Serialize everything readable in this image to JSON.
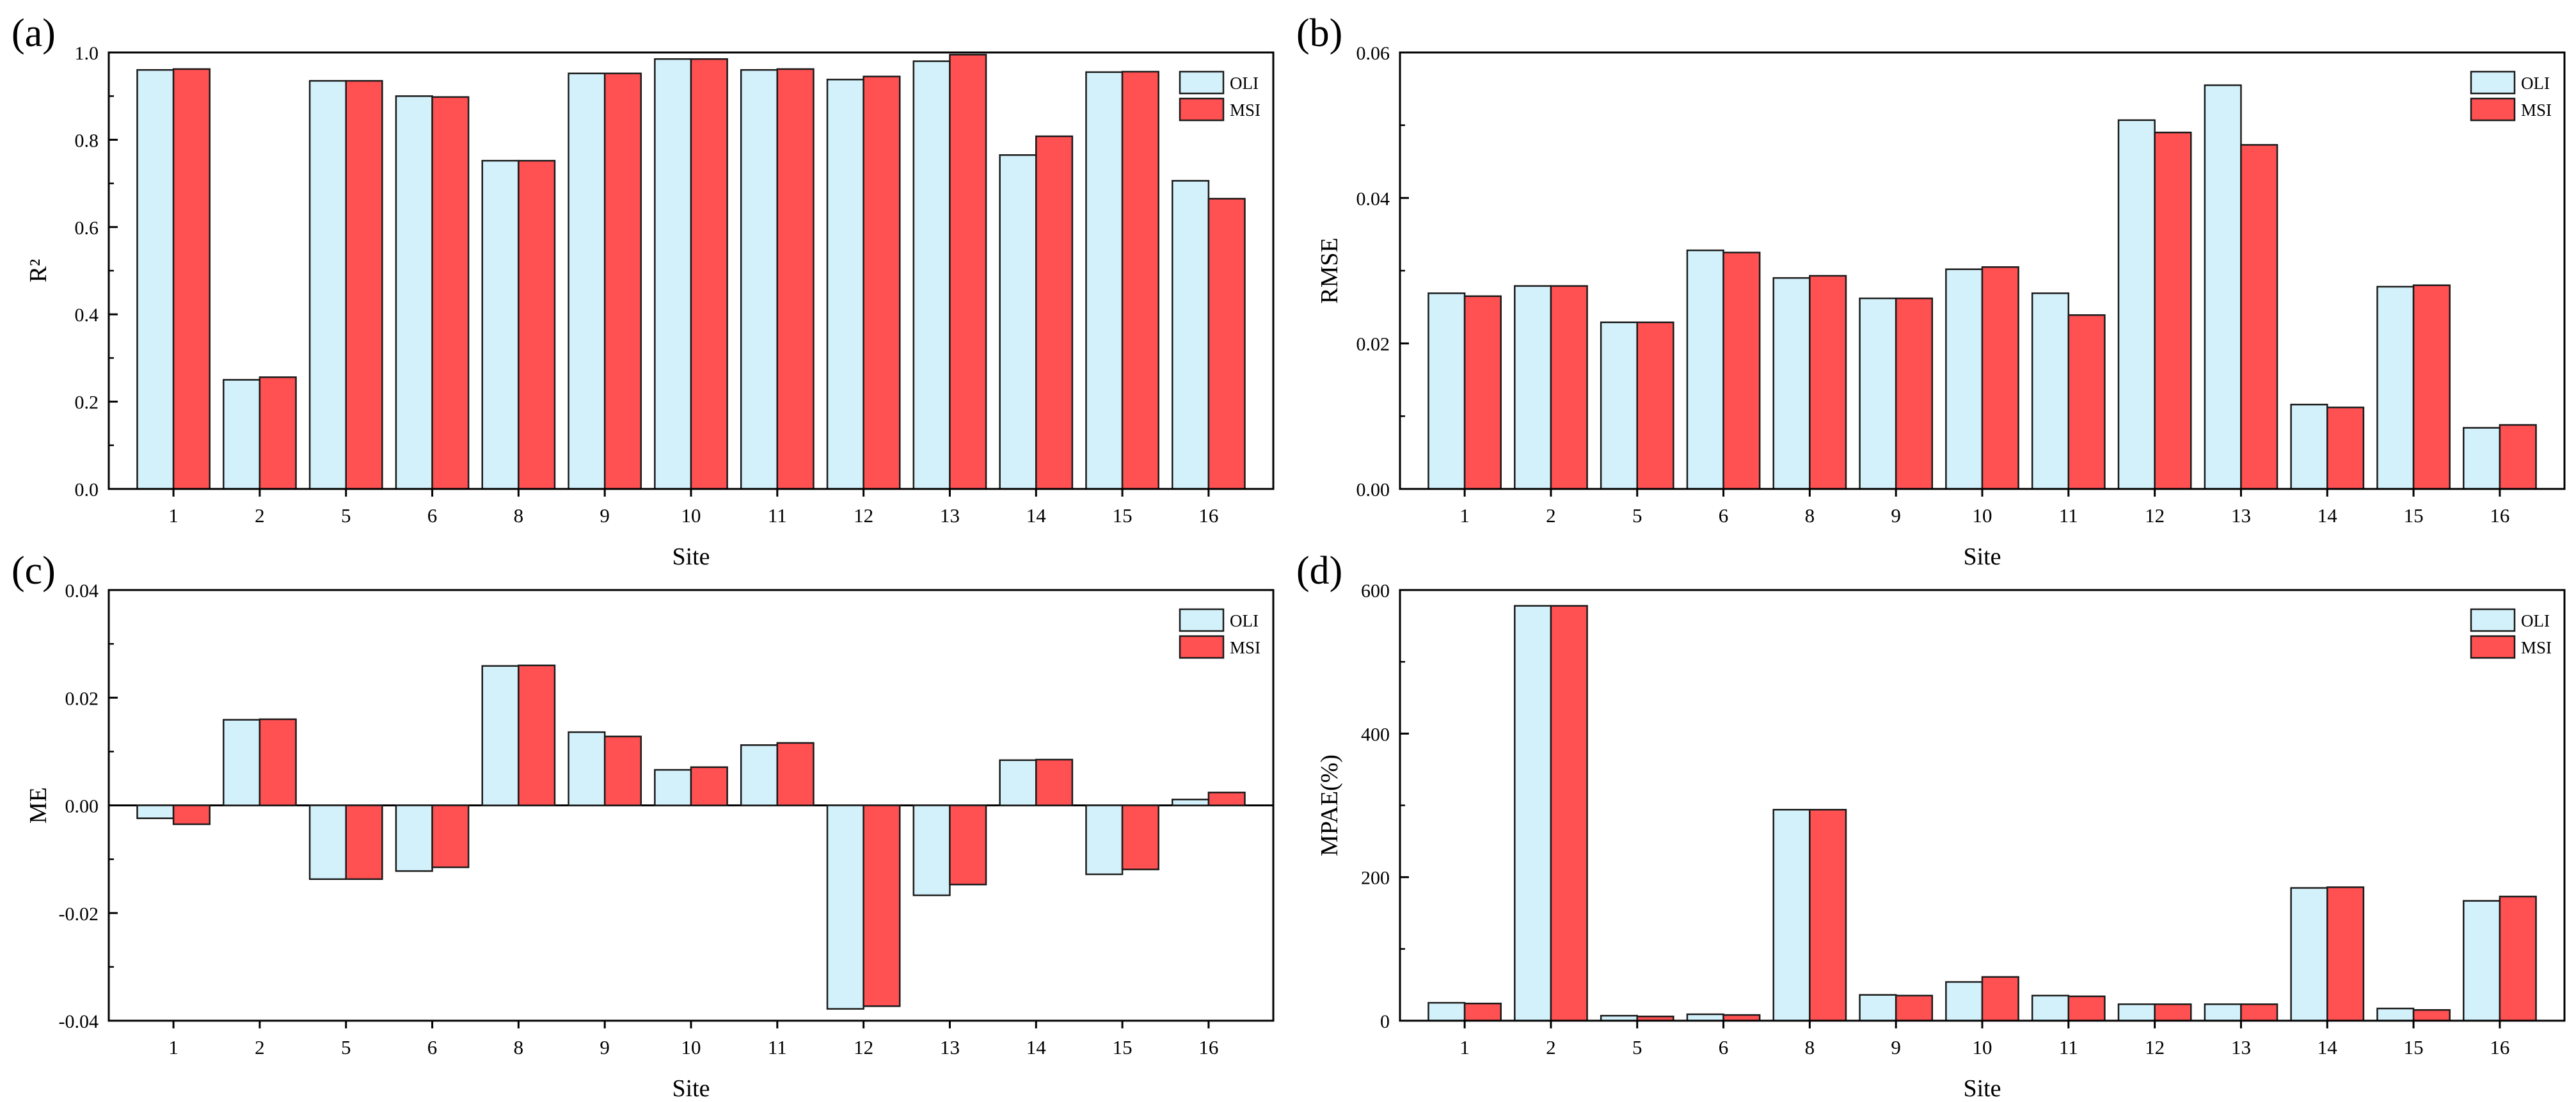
{
  "colors": {
    "oli": "#d3f1fb",
    "msi": "#ff5052",
    "stroke": "#1a1a1a"
  },
  "chart_data": [
    {
      "type": "bar",
      "panel_label": "(a)",
      "ylabel": "R²",
      "xlabel": "Site",
      "categories": [
        "1",
        "2",
        "5",
        "6",
        "8",
        "9",
        "10",
        "11",
        "12",
        "13",
        "14",
        "15",
        "16"
      ],
      "ylim": [
        0,
        1.0
      ],
      "yticks": [
        "0.0",
        "0.2",
        "0.4",
        "0.6",
        "0.8",
        "1.0"
      ],
      "legend_position": "top-right",
      "series": [
        {
          "name": "OLI",
          "values": [
            0.96,
            0.25,
            0.935,
            0.9,
            0.752,
            0.952,
            0.985,
            0.96,
            0.938,
            0.98,
            0.765,
            0.955,
            0.706
          ]
        },
        {
          "name": "MSI",
          "values": [
            0.962,
            0.256,
            0.935,
            0.898,
            0.752,
            0.952,
            0.985,
            0.962,
            0.945,
            0.995,
            0.808,
            0.956,
            0.665
          ]
        }
      ]
    },
    {
      "type": "bar",
      "panel_label": "(b)",
      "ylabel": "RMSE",
      "xlabel": "Site",
      "categories": [
        "1",
        "2",
        "5",
        "6",
        "8",
        "9",
        "10",
        "11",
        "12",
        "13",
        "14",
        "15",
        "16"
      ],
      "ylim": [
        0,
        0.06
      ],
      "yticks": [
        "0.00",
        "0.02",
        "0.04",
        "0.06"
      ],
      "legend_position": "top-right",
      "series": [
        {
          "name": "OLI",
          "values": [
            0.0269,
            0.0279,
            0.0229,
            0.0328,
            0.029,
            0.0262,
            0.0302,
            0.0269,
            0.0507,
            0.0555,
            0.0116,
            0.0278,
            0.0084
          ]
        },
        {
          "name": "MSI",
          "values": [
            0.0265,
            0.0279,
            0.0229,
            0.0325,
            0.0293,
            0.0262,
            0.0305,
            0.0239,
            0.049,
            0.0473,
            0.0112,
            0.028,
            0.0088
          ]
        }
      ]
    },
    {
      "type": "bar",
      "panel_label": "(c)",
      "ylabel": "ME",
      "xlabel": "Site",
      "categories": [
        "1",
        "2",
        "5",
        "6",
        "8",
        "9",
        "10",
        "11",
        "12",
        "13",
        "14",
        "15",
        "16"
      ],
      "ylim": [
        -0.04,
        0.04
      ],
      "yticks": [
        "-0.04",
        "-0.02",
        "0.00",
        "0.02",
        "0.04"
      ],
      "legend_position": "top-right",
      "series": [
        {
          "name": "OLI",
          "values": [
            -0.0024,
            0.0159,
            -0.0137,
            -0.0122,
            0.0259,
            0.0136,
            0.0066,
            0.0112,
            -0.0378,
            -0.0167,
            0.0084,
            -0.0128,
            0.0011
          ]
        },
        {
          "name": "MSI",
          "values": [
            -0.0035,
            0.016,
            -0.0137,
            -0.0115,
            0.026,
            0.0128,
            0.0071,
            0.0116,
            -0.0373,
            -0.0147,
            0.0085,
            -0.0119,
            0.0024
          ]
        }
      ]
    },
    {
      "type": "bar",
      "panel_label": "(d)",
      "ylabel": "MPAE(%)",
      "xlabel": "Site",
      "categories": [
        "1",
        "2",
        "5",
        "6",
        "8",
        "9",
        "10",
        "11",
        "12",
        "13",
        "14",
        "15",
        "16"
      ],
      "ylim": [
        0,
        600
      ],
      "yticks": [
        "0",
        "200",
        "400",
        "600"
      ],
      "legend_position": "top-right",
      "series": [
        {
          "name": "OLI",
          "values": [
            25,
            578,
            7,
            9,
            294,
            36,
            54,
            35,
            23,
            23,
            185,
            17,
            167
          ]
        },
        {
          "name": "MSI",
          "values": [
            24,
            578,
            6,
            8,
            294,
            35,
            61,
            34,
            23,
            23,
            186,
            15,
            173
          ]
        }
      ]
    }
  ]
}
